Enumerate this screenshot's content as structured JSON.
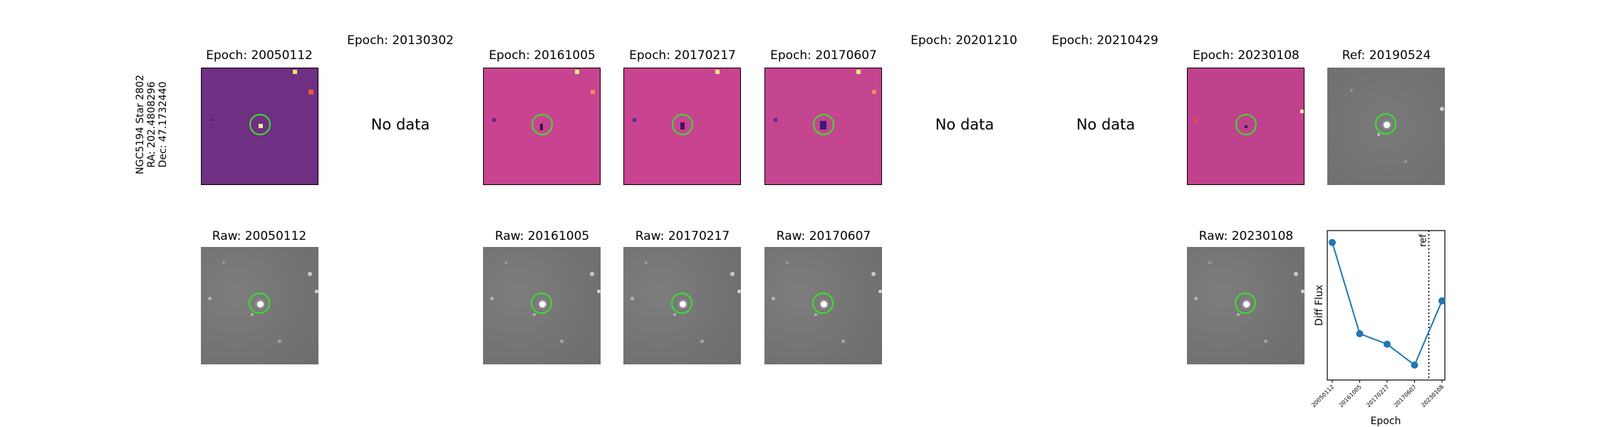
{
  "side_label": {
    "line1": "NGC5194 Star 2802",
    "line2": "RA: 202.4808296",
    "line3": "Dec: 47.1732440"
  },
  "epochs": [
    {
      "title": "Epoch: 20050112",
      "raw_title": "Raw: 20050112",
      "has_data": true,
      "tint": "#6f2f82"
    },
    {
      "title": "Epoch: 20130302",
      "has_data": false,
      "no_data_text": "No data"
    },
    {
      "title": "Epoch: 20161005",
      "raw_title": "Raw: 20161005",
      "has_data": true,
      "tint": "#c84490"
    },
    {
      "title": "Epoch: 20170217",
      "raw_title": "Raw: 20170217",
      "has_data": true,
      "tint": "#c84490"
    },
    {
      "title": "Epoch: 20170607",
      "raw_title": "Raw: 20170607",
      "has_data": true,
      "tint": "#c44590"
    },
    {
      "title": "Epoch: 20201210",
      "has_data": false,
      "no_data_text": "No data"
    },
    {
      "title": "Epoch: 20210429",
      "has_data": false,
      "no_data_text": "No data"
    },
    {
      "title": "Epoch: 20230108",
      "raw_title": "Raw: 20230108",
      "has_data": true,
      "tint": "#c0418c"
    }
  ],
  "reference": {
    "title": "Ref: 20190524"
  },
  "colors": {
    "marker_circle": "#39e22d",
    "line": "#1f77b4"
  },
  "chart_data": {
    "type": "line",
    "x": [
      "20050112",
      "20161005",
      "20170217",
      "20170607",
      "20230108"
    ],
    "values": [
      0.92,
      0.31,
      0.24,
      0.1,
      0.53
    ],
    "ylim": [
      0,
      1
    ],
    "xlabel": "Epoch",
    "ylabel": "Diff Flux",
    "ref_line": {
      "position_between": [
        "20170607",
        "20230108"
      ],
      "fraction": 0.52,
      "label": "ref"
    },
    "grid": false,
    "legend": "none"
  }
}
